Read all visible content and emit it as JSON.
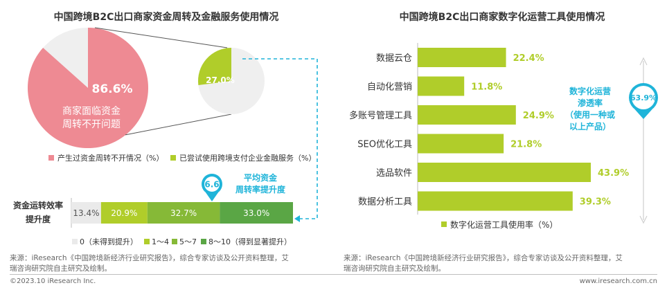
{
  "colors": {
    "pink": "#ee8a93",
    "pink_bg": "#efefef",
    "green1": "#b0cd2a",
    "green2": "#86b937",
    "green3": "#5aa645",
    "gray_seg": "#eaeaea",
    "cyan": "#1fb4d9",
    "text": "#333333"
  },
  "chart_data": [
    {
      "type": "pie",
      "title": "中国跨境B2C出口商家资金周转及金融服务使用情况",
      "pies": [
        {
          "value": 86.6,
          "value_label": "86.6%",
          "inner_label_line1": "商家面临资金",
          "inner_label_line2": "周转不开问题"
        },
        {
          "value": 27.0,
          "value_label": "27.0%"
        }
      ],
      "legend": [
        {
          "color": "#ee8a93",
          "text": "产生过资金周转不开情况（%）"
        },
        {
          "color": "#b0cd2a",
          "text": "已尝试使用跨境支付企业金融服务（%）"
        }
      ]
    },
    {
      "type": "bar",
      "orientation": "horizontal-stacked",
      "row_label_line1": "资金运转效率",
      "row_label_line2": "提升度",
      "segments": [
        {
          "name": "0（未得到提升）",
          "value": 13.4,
          "label": "13.4%",
          "color": "#eaeaea"
        },
        {
          "name": "1～4",
          "value": 20.9,
          "label": "20.9%",
          "color": "#b0cd2a"
        },
        {
          "name": "5～7",
          "value": 32.7,
          "label": "32.7%",
          "color": "#86b937"
        },
        {
          "name": "8～10（得到显著提升）",
          "value": 33.0,
          "label": "33.0%",
          "color": "#5aa645"
        }
      ],
      "annotation": {
        "badge": "6.6",
        "text_line1": "平均资金",
        "text_line2": "周转率提升度"
      }
    },
    {
      "type": "bar",
      "orientation": "horizontal",
      "title": "中国跨境B2C出口商家数字化运营工具使用情况",
      "categories": [
        "数据云仓",
        "自动化营销",
        "多账号管理工具",
        "SEO优化工具",
        "选品软件",
        "数据分析工具"
      ],
      "values": [
        22.4,
        11.8,
        24.9,
        21.8,
        43.9,
        39.3
      ],
      "value_labels": [
        "22.4%",
        "11.8%",
        "24.9%",
        "21.8%",
        "43.9%",
        "39.3%"
      ],
      "legend": "数字化运营工具使用率（%）",
      "annotation": {
        "badge": "63.9%",
        "text_lines": [
          "数字化运营",
          "渗透率",
          "（使用一种或",
          "以上产品）"
        ]
      }
    }
  ],
  "source_left_line1": "来源：iResearch《中国跨境新经济行业研究报告》，综合专家访谈及公开资料整理，艾",
  "source_left_line2": "瑞咨询研究院自主研究及绘制。",
  "source_right_line1": "来源：iResearch《中国跨境新经济行业研究报告》，综合专家访谈及公开资料整理，艾",
  "source_right_line2": "瑞咨询研究院自主研究及绘制。",
  "footer_left": "©2023.10 iResearch Inc.",
  "footer_right": "www.iresearch.com.cn"
}
